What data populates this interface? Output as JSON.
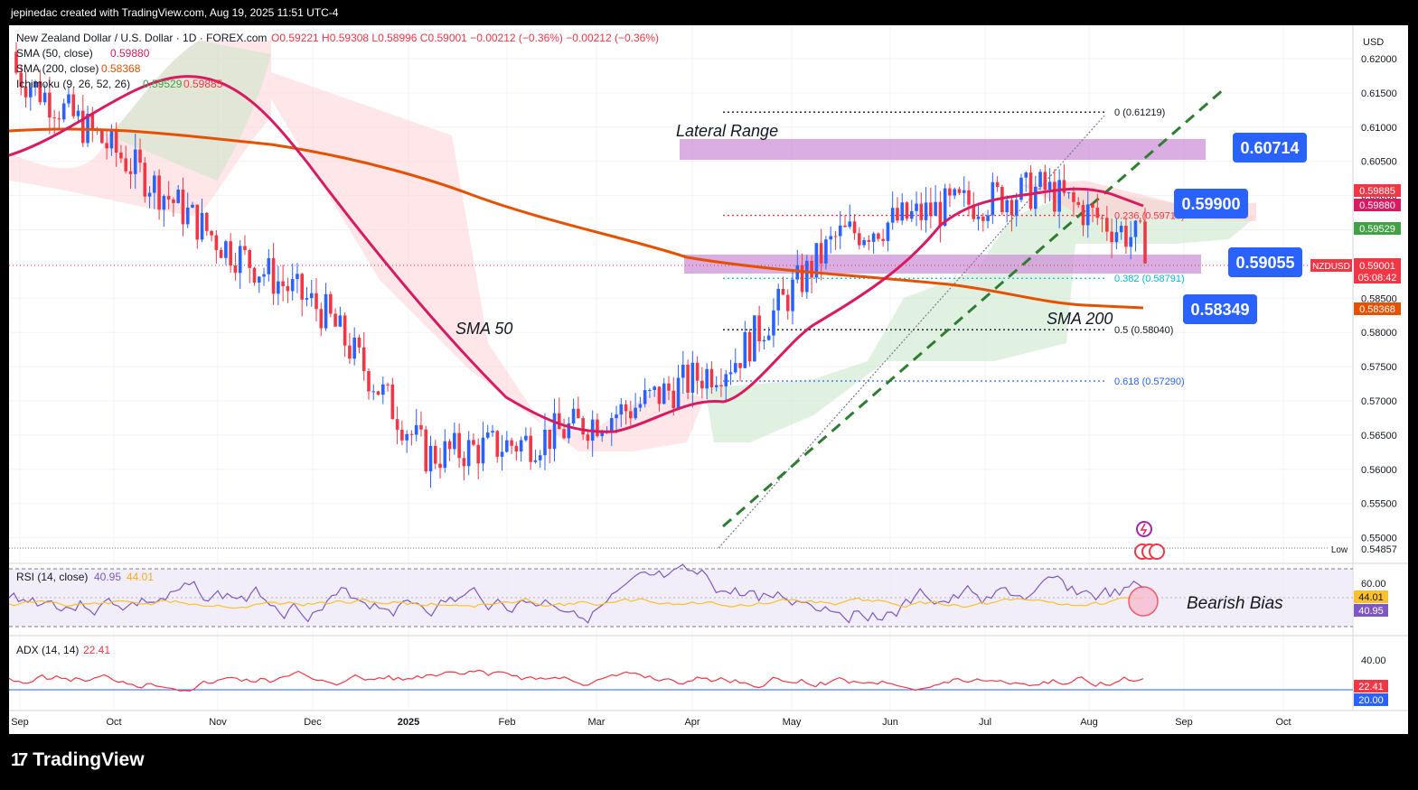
{
  "header": {
    "created_by": "jepinedac created with TradingView.com, Aug 19, 2025 11:51 UTC-4"
  },
  "legend": {
    "symbol": "New Zealand Dollar / U.S. Dollar · 1D · FOREX.com",
    "ohlc": "O0.59221 H0.59308 L0.58996 C0.59001 −0.00212 (−0.36%) −0.00212 (−0.36%)",
    "sma50_label": "SMA (50, close)",
    "sma50_value": "0.59880",
    "sma200_label": "SMA (200, close)",
    "sma200_value": "0.58368",
    "ichimoku_label": "Ichimoku (9, 26, 52, 26)",
    "ichimoku_v1": "0.59529",
    "ichimoku_v2": "0.59885"
  },
  "price_axis": {
    "currency": "USD",
    "ticks": [
      "0.62000",
      "0.61500",
      "0.61000",
      "0.60500",
      "0.60000",
      "0.59500",
      "0.59000",
      "0.58500",
      "0.58000",
      "0.57500",
      "0.57000",
      "0.56500",
      "0.56000",
      "0.55500",
      "0.55000"
    ],
    "tags": {
      "ichimoku_top": "0.59885",
      "sma50": "0.59880",
      "ichimoku_bot": "0.59529",
      "symbol": "NZDUSD",
      "last": "0.59001",
      "countdown": "05:08:42",
      "sma200": "0.58368",
      "low_label": "Low",
      "low_value": "0.54857"
    }
  },
  "time_axis": [
    "Sep",
    "Oct",
    "Nov",
    "Dec",
    "2025",
    "Feb",
    "Mar",
    "Apr",
    "May",
    "Jun",
    "Jul",
    "Aug",
    "Sep",
    "Oct"
  ],
  "annotations": {
    "lateral_range": "Lateral Range",
    "sma50": "SMA 50",
    "sma200": "SMA 200",
    "bearish_bias": "Bearish Bias",
    "level_top": "0.60714",
    "level_mid": "0.59900",
    "level_support": "0.59055",
    "level_sma200": "0.58349"
  },
  "fibonacci": [
    {
      "label": "0 (0.61219)",
      "price": 0.61219
    },
    {
      "label": "0.236 (0.59710)",
      "price": 0.5971
    },
    {
      "label": "0.382 (0.58791)",
      "price": 0.58791
    },
    {
      "label": "0.5 (0.58040)",
      "price": 0.5804
    },
    {
      "label": "0.618 (0.57290)",
      "price": 0.5729
    }
  ],
  "rsi": {
    "label": "RSI (14, close)",
    "value": "40.95",
    "ma_value": "44.01",
    "ticks": [
      "60.00"
    ],
    "tag_ma": "44.01",
    "tag_rsi": "40.95"
  },
  "adx": {
    "label": "ADX (14, 14)",
    "value": "22.41",
    "ticks": [
      "40.00"
    ],
    "tag_adx": "22.41",
    "tag_level": "20.00"
  },
  "brand": "TradingView",
  "colors": {
    "up": "#2962ff",
    "down": "#f23645",
    "sma50": "#d81b60",
    "sma200": "#e65100",
    "range_box": "#ce93d8",
    "label_bg": "#2962ff"
  },
  "chart_data": {
    "type": "candlestick",
    "ylim": [
      0.545,
      0.6245
    ],
    "months": [
      {
        "label": "Sep",
        "close": 0.618
      },
      {
        "label": "Oct",
        "close": 0.606
      },
      {
        "label": "Nov",
        "close": 0.593
      },
      {
        "label": "Dec",
        "close": 0.583
      },
      {
        "label": "2025",
        "close": 0.562
      },
      {
        "label": "Feb",
        "close": 0.564
      },
      {
        "label": "Mar",
        "close": 0.569
      },
      {
        "label": "Apr",
        "close": 0.576
      },
      {
        "label": "May",
        "close": 0.594
      },
      {
        "label": "Jun",
        "close": 0.598
      },
      {
        "label": "Jul",
        "close": 0.601
      },
      {
        "label": "Aug",
        "close": 0.593
      }
    ]
  }
}
